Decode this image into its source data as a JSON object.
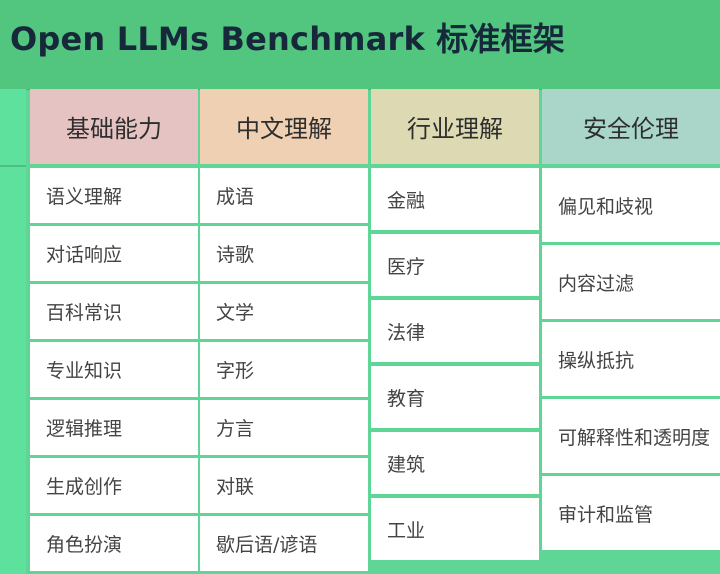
{
  "title": "Open LLMs Benchmark 标准框架",
  "columns": [
    {
      "header": "基础能力",
      "color": "#e6c3c3",
      "items": [
        "语义理解",
        "对话响应",
        "百科常识",
        "专业知识",
        "逻辑推理",
        "生成创作",
        "角色扮演"
      ]
    },
    {
      "header": "中文理解",
      "color": "#f0d0b3",
      "items": [
        "成语",
        "诗歌",
        "文学",
        "字形",
        "方言",
        "对联",
        "歇后语/谚语"
      ]
    },
    {
      "header": "行业理解",
      "color": "#dcd9b3",
      "items": [
        "金融",
        "医疗",
        "法律",
        "教育",
        "建筑",
        "工业"
      ]
    },
    {
      "header": "安全伦理",
      "color": "#a9d6c9",
      "items": [
        "偏见和歧视",
        "内容过滤",
        "操纵抵抗",
        "可解释性和透明度",
        "审计和监管"
      ]
    }
  ]
}
